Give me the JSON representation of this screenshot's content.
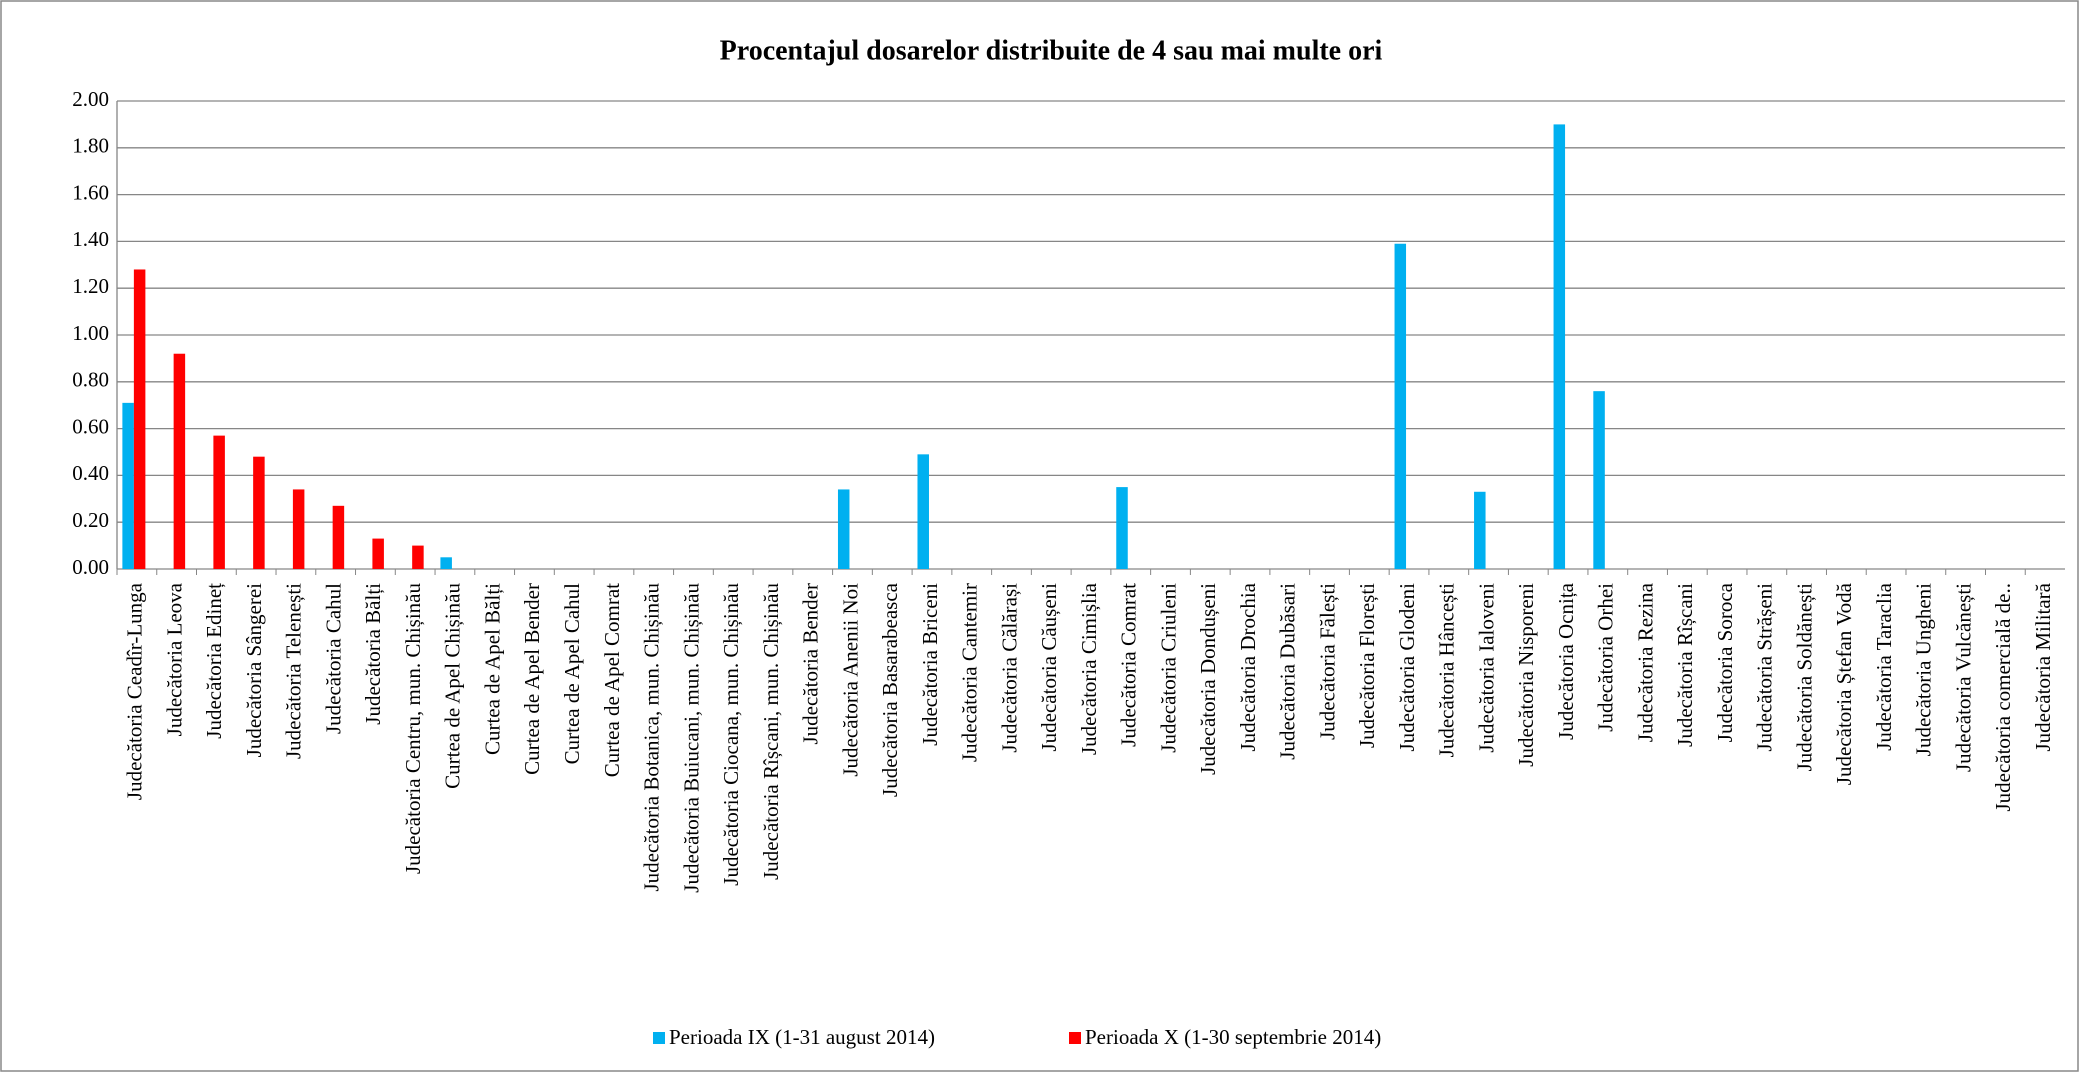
{
  "chart_data": {
    "type": "bar",
    "title": "Procentajul dosarelor distribuite de 4 sau mai multe ori",
    "categories": [
      "Judecătoria Ceadîr-Lunga",
      "Judecătoria Leova",
      "Judecătoria Edineț",
      "Judecătoria Sângerei",
      "Judecătoria Telenești",
      "Judecătoria Cahul",
      "Judecătoria Bălți",
      "Judecătoria Centru, mun. Chișinău",
      "Curtea de Apel Chișinău",
      "Curtea de Apel Bălți",
      "Curtea de Apel Bender",
      "Curtea de Apel Cahul",
      "Curtea de Apel Comrat",
      "Judecătoria Botanica, mun. Chișinău",
      "Judecătoria Buiucani, mun. Chișinău",
      "Judecătoria Ciocana, mun. Chișinău",
      "Judecătoria Rîșcani, mun. Chișinău",
      "Judecătoria Bender",
      "Judecătoria Anenii Noi",
      "Judecătoria Basarabeasca",
      "Judecătoria Briceni",
      "Judecătoria Cantemir",
      "Judecătoria Călărași",
      "Judecătoria Căușeni",
      "Judecătoria Cimișlia",
      "Judecătoria Comrat",
      "Judecătoria Criuleni",
      "Judecătoria Dondușeni",
      "Judecătoria Drochia",
      "Judecătoria Dubăsari",
      "Judecătoria Fălești",
      "Judecătoria Florești",
      "Judecătoria Glodeni",
      "Judecătoria Hâncești",
      "Judecătoria Ialoveni",
      "Judecătoria Nisporeni",
      "Judecătoria Ocnița",
      "Judecătoria Orhei",
      "Judecătoria Rezina",
      "Judecătoria Rîșcani",
      "Judecătoria Soroca",
      "Judecătoria Strășeni",
      "Judecătoria Soldănești",
      "Judecătoria Ștefan Vodă",
      "Judecătoria Taraclia",
      "Judecătoria Ungheni",
      "Judecătoria Vulcănești",
      "Judecătoria comercială de..",
      "Judecătoria Militară"
    ],
    "series": [
      {
        "name": "Perioada IX (1-31 august 2014)",
        "color": "#00b0f0",
        "values": [
          0.71,
          0,
          0,
          0,
          0,
          0,
          0,
          0,
          0.05,
          0,
          0,
          0,
          0,
          0,
          0,
          0,
          0,
          0,
          0.34,
          0,
          0.49,
          0,
          0,
          0,
          0,
          0.35,
          0,
          0,
          0,
          0,
          0,
          0,
          1.39,
          0,
          0.33,
          0,
          1.9,
          0.76,
          0,
          0,
          0,
          0,
          0,
          0,
          0,
          0,
          0,
          0,
          0
        ]
      },
      {
        "name": "Perioada X (1-30 septembrie 2014)",
        "color": "#ff0000",
        "values": [
          1.28,
          0.92,
          0.57,
          0.48,
          0.34,
          0.27,
          0.13,
          0.1,
          0,
          0,
          0,
          0,
          0,
          0,
          0,
          0,
          0,
          0,
          0,
          0,
          0,
          0,
          0,
          0,
          0,
          0,
          0,
          0,
          0,
          0,
          0,
          0,
          0,
          0,
          0,
          0,
          0,
          0,
          0,
          0,
          0,
          0,
          0,
          0,
          0,
          0,
          0,
          0,
          0
        ]
      }
    ],
    "ylim": [
      0,
      2
    ],
    "yticks": [
      {
        "value": 0,
        "label": "0.00"
      },
      {
        "value": 0.2,
        "label": "0.20"
      },
      {
        "value": 0.4,
        "label": "0.40"
      },
      {
        "value": 0.6,
        "label": "0.60"
      },
      {
        "value": 0.8,
        "label": "0.80"
      },
      {
        "value": 1,
        "label": "1.00"
      },
      {
        "value": 1.2,
        "label": "1.20"
      },
      {
        "value": 1.4,
        "label": "1.40"
      },
      {
        "value": 1.6,
        "label": "1.60"
      },
      {
        "value": 1.8,
        "label": "1.80"
      },
      {
        "value": 2,
        "label": "2.00"
      }
    ],
    "grid": true,
    "legend": "bottom"
  }
}
